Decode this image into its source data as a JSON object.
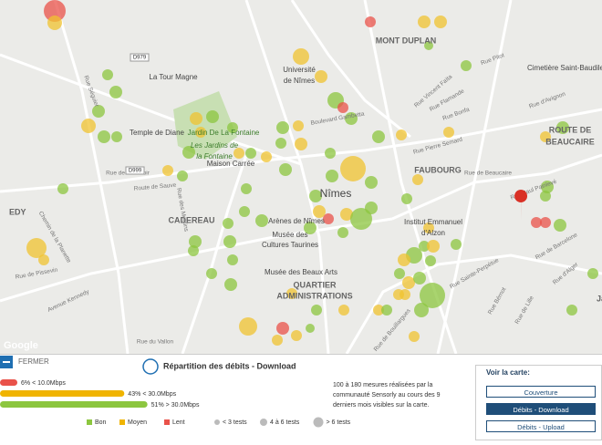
{
  "map": {
    "places": [
      "MONT DUPLAN",
      "FAUBOURG",
      "ROUTE DE",
      "BEAUCAIRE",
      "CADEREAU",
      "QUARTIER",
      "ADMINISTRATIONS",
      "Nîmes",
      "EDY",
      "Ja"
    ],
    "landmarks": [
      "La Tour Magne",
      "Université",
      "de Nîmes",
      "Temple de Diane",
      "Jardin De La Fontaine",
      "Les Jardins de",
      "la Fontaine",
      "Maison Carrée",
      "Arènes de Nîmes",
      "Musée des",
      "Cultures Taurines",
      "Musée des Beaux Arts",
      "Institut Emmanuel",
      "d'Alzon",
      "Cimetière Saint-Baudile"
    ],
    "streets": [
      "Route de Sauve",
      "Rue Pierre Semard",
      "Rue Pitot",
      "Rue de Beaucaire",
      "Avenue Kennedy",
      "Rue du Vallon",
      "Rue de Bouillargues",
      "Rue de Barcelone",
      "Rue Vincent Faïta",
      "Boulevard Gambetta",
      "Rue Flamande",
      "Rue Paul Painlevé",
      "Rue Séguier",
      "Rue Bonfa",
      "Rue d'Alger",
      "Rue Bérnot",
      "Rue de Lille",
      "Rue de l'Abattoir",
      "Chemin de la Planette",
      "Rue des Moulins",
      "Rue de Pissevin",
      "Rue Sainte-Perpétue",
      "Rue d'Avignon"
    ],
    "road_shields": [
      "D979",
      "D999"
    ],
    "attribution": "Google"
  },
  "panel": {
    "close": "FERMER",
    "title": "Répartition des débits - Download",
    "bars": [
      {
        "value": 6,
        "value_label": "6%",
        "label": "< 10.0Mbps",
        "color": "#e9524a"
      },
      {
        "value": 43,
        "value_label": "43%",
        "label": "< 30.0Mbps",
        "color": "#f0b400"
      },
      {
        "value": 51,
        "value_label": "51%",
        "label": "> 30.0Mbps",
        "color": "#8cc63f"
      }
    ],
    "legend": [
      {
        "label": "Bon",
        "color": "#8cc63f"
      },
      {
        "label": "Moyen",
        "color": "#f0b400"
      },
      {
        "label": "Lent",
        "color": "#e9524a"
      }
    ],
    "sizes": [
      "< 3 tests",
      "4 à 6 tests",
      "> 6 tests"
    ],
    "description": [
      "100 à 180 mesures réalisées par la",
      "communauté Sensorly au cours des 9",
      "derniers mois visibles sur la carte."
    ],
    "view": {
      "title": "Voir la carte:",
      "buttons": [
        "Couverture",
        "Débits - Download",
        "Débits - Upload"
      ]
    }
  }
}
